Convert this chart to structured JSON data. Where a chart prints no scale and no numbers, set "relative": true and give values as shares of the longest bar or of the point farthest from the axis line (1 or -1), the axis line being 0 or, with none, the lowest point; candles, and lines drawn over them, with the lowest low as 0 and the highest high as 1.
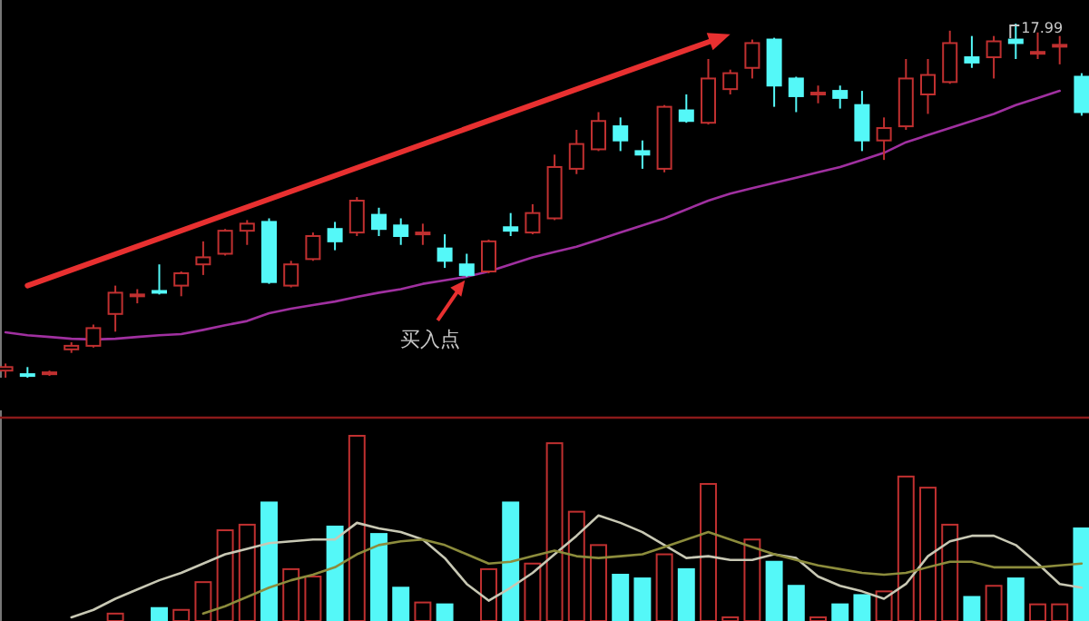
{
  "chart_data": [
    {
      "type": "candlestick",
      "relative": true,
      "categories": [
        null,
        null,
        null,
        null,
        null,
        null,
        null,
        null,
        null,
        null,
        null,
        null,
        null,
        null,
        null,
        null,
        null,
        null,
        null,
        null,
        null,
        null,
        null,
        null,
        null,
        null,
        null,
        null,
        null,
        null,
        null,
        null,
        null,
        null,
        null,
        null,
        null,
        null,
        null,
        null,
        null,
        null,
        null,
        null,
        null,
        null,
        null,
        null,
        null,
        null
      ],
      "ohlc": [
        [
          0.02,
          0.04,
          0.0,
          0.03
        ],
        [
          0.01,
          0.03,
          0.0,
          0.005
        ],
        [
          0.01,
          0.02,
          0.005,
          0.015
        ],
        [
          0.08,
          0.1,
          0.07,
          0.09
        ],
        [
          0.09,
          0.15,
          0.085,
          0.14
        ],
        [
          0.18,
          0.26,
          0.13,
          0.24
        ],
        [
          0.23,
          0.25,
          0.21,
          0.235
        ],
        [
          0.245,
          0.32,
          0.235,
          0.24
        ],
        [
          0.26,
          0.3,
          0.23,
          0.295
        ],
        [
          0.32,
          0.385,
          0.29,
          0.34
        ],
        [
          0.35,
          0.42,
          0.345,
          0.415
        ],
        [
          0.415,
          0.445,
          0.375,
          0.435
        ],
        [
          0.44,
          0.45,
          0.265,
          0.27
        ],
        [
          0.26,
          0.33,
          0.255,
          0.32
        ],
        [
          0.335,
          0.41,
          0.33,
          0.4
        ],
        [
          0.42,
          0.44,
          0.36,
          0.385
        ],
        [
          0.41,
          0.51,
          0.4,
          0.5
        ],
        [
          0.46,
          0.48,
          0.4,
          0.42
        ],
        [
          0.43,
          0.45,
          0.375,
          0.4
        ],
        [
          0.405,
          0.435,
          0.375,
          0.41
        ],
        [
          0.365,
          0.405,
          0.31,
          0.33
        ],
        [
          0.32,
          0.35,
          0.285,
          0.29
        ],
        [
          0.3,
          0.39,
          0.295,
          0.385
        ],
        [
          0.425,
          0.465,
          0.4,
          0.415
        ],
        [
          0.41,
          0.49,
          0.405,
          0.465
        ],
        [
          0.45,
          0.63,
          0.445,
          0.595
        ],
        [
          0.59,
          0.7,
          0.575,
          0.66
        ],
        [
          0.645,
          0.75,
          0.64,
          0.725
        ],
        [
          0.71,
          0.735,
          0.64,
          0.67
        ],
        [
          0.64,
          0.67,
          0.59,
          0.63
        ],
        [
          0.59,
          0.77,
          0.58,
          0.765
        ],
        [
          0.755,
          0.8,
          0.72,
          0.725
        ],
        [
          0.72,
          0.9,
          0.715,
          0.845
        ],
        [
          0.815,
          0.87,
          0.8,
          0.86
        ],
        [
          0.875,
          0.955,
          0.845,
          0.945
        ],
        [
          0.955,
          0.96,
          0.765,
          0.825
        ],
        [
          0.845,
          0.85,
          0.75,
          0.795
        ],
        [
          0.8,
          0.825,
          0.775,
          0.805
        ],
        [
          0.81,
          0.825,
          0.76,
          0.79
        ],
        [
          0.77,
          0.81,
          0.64,
          0.67
        ],
        [
          0.67,
          0.735,
          0.615,
          0.705
        ],
        [
          0.71,
          0.9,
          0.7,
          0.845
        ],
        [
          0.8,
          0.9,
          0.745,
          0.855
        ],
        [
          0.835,
          0.98,
          0.83,
          0.945
        ],
        [
          0.905,
          0.965,
          0.875,
          0.89
        ],
        [
          0.905,
          0.965,
          0.845,
          0.95
        ],
        [
          0.955,
          1.0,
          0.9,
          0.945
        ],
        [
          0.915,
          0.975,
          0.9,
          0.92
        ],
        [
          0.935,
          0.965,
          0.885,
          0.94
        ],
        [
          0.85,
          0.86,
          0.74,
          0.75
        ]
      ],
      "colors": [
        "#c03030",
        "#54f8f8",
        "#c03030",
        "#c03030",
        "#c03030",
        "#c03030",
        "#c03030",
        "#54f8f8",
        "#c03030",
        "#c03030",
        "#c03030",
        "#c03030",
        "#54f8f8",
        "#c03030",
        "#c03030",
        "#54f8f8",
        "#c03030",
        "#54f8f8",
        "#54f8f8",
        "#c03030",
        "#54f8f8",
        "#54f8f8",
        "#c03030",
        "#54f8f8",
        "#c03030",
        "#c03030",
        "#c03030",
        "#c03030",
        "#54f8f8",
        "#54f8f8",
        "#c03030",
        "#54f8f8",
        "#c03030",
        "#c03030",
        "#c03030",
        "#54f8f8",
        "#54f8f8",
        "#c03030",
        "#54f8f8",
        "#54f8f8",
        "#c03030",
        "#c03030",
        "#c03030",
        "#c03030",
        "#54f8f8",
        "#c03030",
        "#54f8f8",
        "#c03030",
        "#c03030",
        "#54f8f8"
      ],
      "series": [
        {
          "type": "line",
          "color": "#a030a0",
          "values": [
            0.128,
            0.12,
            0.115,
            0.11,
            0.108,
            0.11,
            0.115,
            0.12,
            0.123,
            0.135,
            0.148,
            0.16,
            0.182,
            0.195,
            0.205,
            0.215,
            0.228,
            0.24,
            0.25,
            0.265,
            0.275,
            0.285,
            0.3,
            0.32,
            0.34,
            0.355,
            0.37,
            0.39,
            0.41,
            0.43,
            0.45,
            0.475,
            0.5,
            0.52,
            0.535,
            0.55,
            0.565,
            0.58,
            0.595,
            0.615,
            0.635,
            0.665,
            0.685,
            0.705,
            0.725,
            0.745,
            0.77,
            0.79,
            0.81,
            null
          ]
        }
      ],
      "annotations": [
        "买入点",
        "17.99"
      ]
    },
    {
      "type": "bar",
      "relative": true,
      "categories": [
        null,
        null,
        null,
        null,
        null,
        null,
        null,
        null,
        null,
        null,
        null,
        null,
        null,
        null,
        null,
        null,
        null,
        null,
        null,
        null,
        null,
        null,
        null,
        null,
        null,
        null,
        null,
        null,
        null,
        null,
        null,
        null,
        null,
        null,
        null,
        null,
        null,
        null,
        null,
        null,
        null,
        null,
        null,
        null,
        null,
        null,
        null,
        null,
        null,
        null
      ],
      "series": [
        {
          "type": "bar",
          "colors": [
            "#c03030",
            "#54f8f8",
            "#c03030",
            "#c03030",
            "#c03030",
            "#c03030",
            "#c03030",
            "#54f8f8",
            "#c03030",
            "#c03030",
            "#c03030",
            "#c03030",
            "#54f8f8",
            "#c03030",
            "#c03030",
            "#54f8f8",
            "#c03030",
            "#54f8f8",
            "#54f8f8",
            "#c03030",
            "#54f8f8",
            "#54f8f8",
            "#c03030",
            "#54f8f8",
            "#c03030",
            "#c03030",
            "#c03030",
            "#c03030",
            "#54f8f8",
            "#54f8f8",
            "#c03030",
            "#54f8f8",
            "#c03030",
            "#c03030",
            "#c03030",
            "#54f8f8",
            "#54f8f8",
            "#c03030",
            "#54f8f8",
            "#54f8f8",
            "#c03030",
            "#c03030",
            "#c03030",
            "#c03030",
            "#54f8f8",
            "#c03030",
            "#54f8f8",
            "#c03030",
            "#c03030",
            "#54f8f8"
          ],
          "values": [
            0,
            0,
            0,
            0,
            0,
            0.04,
            0,
            0.07,
            0.06,
            0.21,
            0.49,
            0.52,
            0.64,
            0.28,
            0.24,
            0.51,
            1.0,
            0.47,
            0.18,
            0.1,
            0.09,
            0,
            0.28,
            0.64,
            0.31,
            0.96,
            0.59,
            0.41,
            0.25,
            0.23,
            0.36,
            0.28,
            0.74,
            0.02,
            0.44,
            0.32,
            0.19,
            0.02,
            0.09,
            0.14,
            0.16,
            0.78,
            0.72,
            0.52,
            0.13,
            0.19,
            0.23,
            0.09,
            0.09,
            0.5
          ]
        },
        {
          "type": "line",
          "color": "#c8c8b4",
          "values": [
            null,
            null,
            null,
            0.02,
            0.06,
            0.12,
            0.17,
            0.22,
            0.26,
            0.31,
            0.36,
            0.39,
            0.42,
            0.43,
            0.44,
            0.44,
            0.53,
            0.5,
            0.48,
            0.44,
            0.34,
            0.2,
            0.11,
            0.18,
            0.26,
            0.36,
            0.46,
            0.57,
            0.53,
            0.48,
            0.41,
            0.34,
            0.35,
            0.33,
            0.33,
            0.36,
            0.34,
            0.24,
            0.19,
            0.16,
            0.12,
            0.2,
            0.35,
            0.43,
            0.46,
            0.46,
            0.41,
            0.31,
            0.2,
            0.18
          ]
        },
        {
          "type": "line",
          "color": "#8c8c3c",
          "values": [
            null,
            null,
            null,
            null,
            null,
            null,
            null,
            null,
            null,
            0.04,
            0.08,
            0.13,
            0.18,
            0.22,
            0.25,
            0.29,
            0.36,
            0.41,
            0.43,
            0.44,
            0.41,
            0.36,
            0.31,
            0.32,
            0.35,
            0.38,
            0.35,
            0.34,
            0.35,
            0.36,
            0.4,
            0.44,
            0.48,
            0.44,
            0.4,
            0.36,
            0.33,
            0.3,
            0.28,
            0.26,
            0.25,
            0.26,
            0.29,
            0.32,
            0.32,
            0.29,
            0.29,
            0.29,
            0.3,
            0.31
          ]
        }
      ]
    }
  ]
}
